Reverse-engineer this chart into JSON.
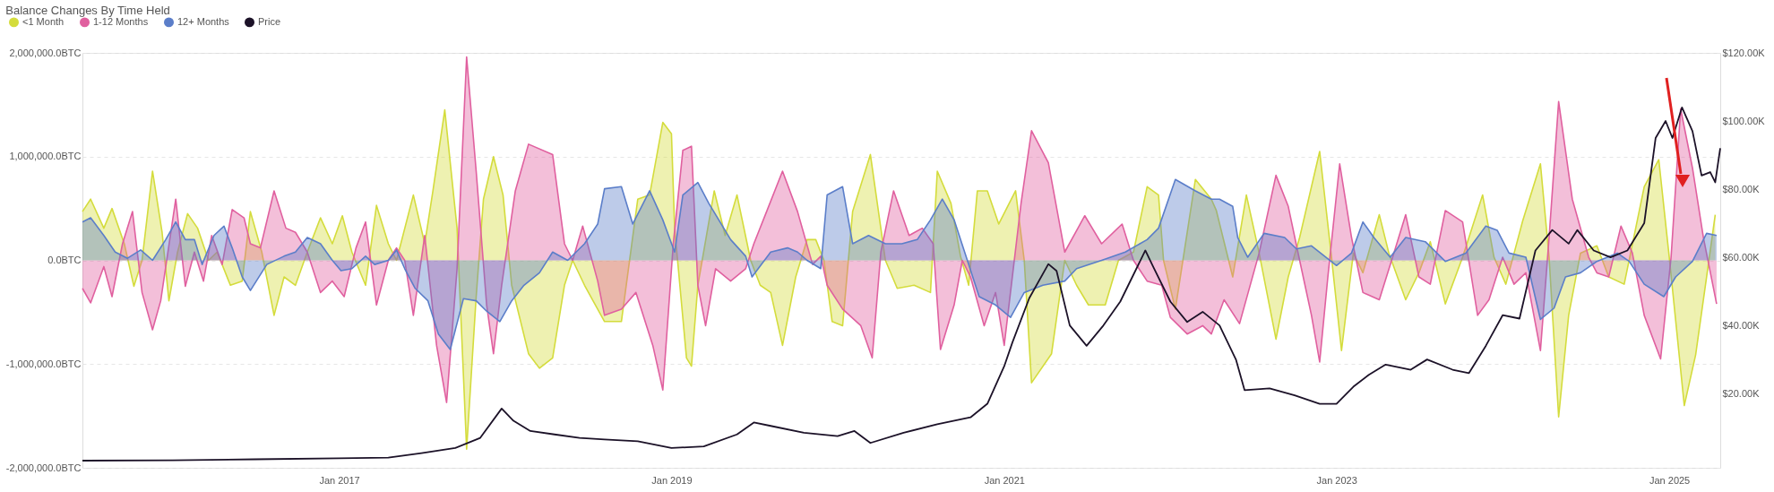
{
  "chart_data": {
    "type": "area",
    "title": "Balance Changes By Time Held",
    "legend": "top left",
    "grid": "y",
    "xlim": [
      "2015-06-17",
      "2025-04-23"
    ],
    "xticks": [
      {
        "value": "2017-01-01",
        "label": "Jan 2017"
      },
      {
        "value": "2019-01-01",
        "label": "Jan 2019"
      },
      {
        "value": "2021-01-01",
        "label": "Jan 2021"
      },
      {
        "value": "2023-01-01",
        "label": "Jan 2023"
      },
      {
        "value": "2025-01-01",
        "label": "Jan 2025"
      }
    ],
    "ylim": [
      -2000000,
      2000000
    ],
    "yticks": [
      {
        "value": -2000000,
        "label": "-2,000,000.0BTC"
      },
      {
        "value": -1000000,
        "label": "-1,000,000.0BTC"
      },
      {
        "value": 0,
        "label": "0.0BTC"
      },
      {
        "value": 1000000,
        "label": "1,000,000.0BTC"
      },
      {
        "value": 2000000,
        "label": "2,000,000.0BTC"
      }
    ],
    "y2lim": [
      -1800,
      120000
    ],
    "y2ticks": [
      {
        "value": 20000,
        "label": "$20.00K"
      },
      {
        "value": 40000,
        "label": "$40.00K"
      },
      {
        "value": 60000,
        "label": "$60.00K"
      },
      {
        "value": 80000,
        "label": "$80.00K"
      },
      {
        "value": 100000,
        "label": "$100.00K"
      },
      {
        "value": 120000,
        "label": "$120.00K"
      }
    ],
    "series": [
      {
        "name": "<1 Month",
        "color": "#d4dc3c",
        "x": [
          "2015-06-17",
          "2015-07-05",
          "2015-08-03",
          "2015-08-21",
          "2015-09-17",
          "2015-10-08",
          "2015-10-26",
          "2015-11-18",
          "2015-12-09",
          "2015-12-24",
          "2016-01-12",
          "2016-02-03",
          "2016-02-25",
          "2016-03-20",
          "2016-04-08",
          "2016-05-07",
          "2016-06-02",
          "2016-06-20",
          "2016-07-15",
          "2016-08-11",
          "2016-09-02",
          "2016-09-27",
          "2016-10-23",
          "2016-11-21",
          "2016-12-17",
          "2017-01-08",
          "2017-01-29",
          "2017-02-28",
          "2017-03-24",
          "2017-04-19",
          "2017-05-07",
          "2017-06-13",
          "2017-07-08",
          "2017-07-26",
          "2017-08-21",
          "2017-09-17",
          "2017-10-08",
          "2017-10-29",
          "2017-11-14",
          "2017-12-06",
          "2017-12-27",
          "2018-01-15",
          "2018-02-21",
          "2018-03-17",
          "2018-04-15",
          "2018-05-11",
          "2018-05-29",
          "2018-06-24",
          "2018-08-07",
          "2018-09-13",
          "2018-10-19",
          "2018-11-14",
          "2018-12-13",
          "2019-01-01",
          "2019-01-08",
          "2019-02-03",
          "2019-02-14",
          "2019-02-28",
          "2019-04-05",
          "2019-04-29",
          "2019-05-25",
          "2019-06-24",
          "2019-07-15",
          "2019-08-07",
          "2019-09-02",
          "2019-10-01",
          "2019-10-26",
          "2019-11-14",
          "2019-12-02",
          "2019-12-20",
          "2020-01-12",
          "2020-02-03",
          "2020-03-13",
          "2020-04-15",
          "2020-05-11",
          "2020-06-17",
          "2020-07-23",
          "2020-08-07",
          "2020-09-06",
          "2020-09-27",
          "2020-10-15",
          "2020-11-03",
          "2020-11-25",
          "2020-12-20",
          "2021-01-26",
          "2021-02-14",
          "2021-03-02",
          "2021-04-15",
          "2021-05-14",
          "2021-06-09",
          "2021-07-05",
          "2021-08-11",
          "2021-09-09",
          "2021-10-12",
          "2021-11-11",
          "2021-12-06",
          "2021-12-17",
          "2022-01-12",
          "2022-02-25",
          "2022-04-01",
          "2022-04-12",
          "2022-05-18",
          "2022-06-17",
          "2022-07-15",
          "2022-08-21",
          "2022-09-17",
          "2022-10-12",
          "2022-11-25",
          "2022-12-20",
          "2023-01-12",
          "2023-02-07",
          "2023-02-28",
          "2023-04-05",
          "2023-04-26",
          "2023-06-02",
          "2023-07-01",
          "2023-07-26",
          "2023-08-28",
          "2023-10-05",
          "2023-11-18",
          "2023-12-13",
          "2024-01-08",
          "2024-02-14",
          "2024-03-24",
          "2024-04-12",
          "2024-05-03",
          "2024-05-25",
          "2024-06-20",
          "2024-07-26",
          "2024-08-21",
          "2024-09-24",
          "2024-11-07",
          "2024-12-09",
          "2025-01-01",
          "2025-02-03",
          "2025-02-28",
          "2025-03-24",
          "2025-04-12"
        ],
        "values": [
          470000,
          590000,
          310000,
          500000,
          160000,
          -250000,
          0,
          860000,
          270000,
          -390000,
          80000,
          450000,
          310000,
          0,
          80000,
          -240000,
          -200000,
          470000,
          80000,
          -530000,
          -160000,
          -240000,
          80000,
          410000,
          160000,
          430000,
          80000,
          -240000,
          530000,
          160000,
          0,
          630000,
          160000,
          670000,
          1450000,
          310000,
          -1820000,
          -350000,
          590000,
          1000000,
          630000,
          -240000,
          -900000,
          -1040000,
          -940000,
          -240000,
          0,
          -240000,
          -590000,
          -590000,
          590000,
          630000,
          1330000,
          1220000,
          310000,
          -940000,
          -1020000,
          -240000,
          670000,
          240000,
          630000,
          0,
          -240000,
          -310000,
          -820000,
          -160000,
          200000,
          200000,
          0,
          -590000,
          -630000,
          470000,
          1020000,
          0,
          -270000,
          -240000,
          -310000,
          860000,
          550000,
          40000,
          -240000,
          670000,
          670000,
          350000,
          670000,
          0,
          -1180000,
          -900000,
          0,
          -240000,
          -430000,
          -430000,
          0,
          80000,
          710000,
          630000,
          0,
          -470000,
          780000,
          590000,
          480000,
          -160000,
          630000,
          70000,
          -760000,
          -160000,
          220000,
          1050000,
          70000,
          -870000,
          70000,
          -120000,
          440000,
          70000,
          -380000,
          -120000,
          180000,
          -420000,
          30000,
          630000,
          30000,
          -230000,
          380000,
          930000,
          30000,
          -1510000,
          -530000,
          70000,
          140000,
          -160000,
          -230000,
          710000,
          970000,
          30000,
          -1400000,
          -910000,
          -160000,
          440000
        ]
      },
      {
        "name": "1-12 Months",
        "color": "#e0609f",
        "x": [
          "2015-06-17",
          "2015-07-05",
          "2015-08-03",
          "2015-08-21",
          "2015-09-13",
          "2015-10-05",
          "2015-10-26",
          "2015-11-18",
          "2015-12-06",
          "2016-01-08",
          "2016-01-29",
          "2016-02-18",
          "2016-03-09",
          "2016-03-27",
          "2016-04-19",
          "2016-05-11",
          "2016-06-06",
          "2016-06-20",
          "2016-07-12",
          "2016-08-11",
          "2016-09-06",
          "2016-09-27",
          "2016-10-23",
          "2016-11-21",
          "2016-12-17",
          "2017-01-12",
          "2017-02-07",
          "2017-02-28",
          "2017-03-24",
          "2017-04-19",
          "2017-05-07",
          "2017-05-25",
          "2017-06-13",
          "2017-07-08",
          "2017-08-03",
          "2017-08-25",
          "2017-09-17",
          "2017-10-08",
          "2017-10-29",
          "2017-11-21",
          "2017-12-06",
          "2017-12-24",
          "2018-01-23",
          "2018-02-21",
          "2018-04-15",
          "2018-05-11",
          "2018-05-29",
          "2018-06-20",
          "2018-07-23",
          "2018-08-07",
          "2018-09-13",
          "2018-10-15",
          "2018-11-21",
          "2018-12-13",
          "2019-01-05",
          "2019-01-26",
          "2019-02-14",
          "2019-02-28",
          "2019-03-17",
          "2019-04-08",
          "2019-05-11",
          "2019-06-13",
          "2019-07-01",
          "2019-07-29",
          "2019-09-02",
          "2019-10-05",
          "2019-11-07",
          "2019-11-25",
          "2019-12-09",
          "2020-01-12",
          "2020-02-21",
          "2020-03-17",
          "2020-04-05",
          "2020-05-03",
          "2020-06-06",
          "2020-07-05",
          "2020-07-29",
          "2020-08-14",
          "2020-09-13",
          "2020-10-01",
          "2020-10-19",
          "2020-11-18",
          "2020-12-13",
          "2021-01-01",
          "2021-02-07",
          "2021-03-02",
          "2021-04-08",
          "2021-05-14",
          "2021-06-27",
          "2021-08-03",
          "2021-09-17",
          "2021-10-12",
          "2021-11-11",
          "2021-12-13",
          "2022-01-01",
          "2022-02-07",
          "2022-03-13",
          "2022-04-01",
          "2022-04-29",
          "2022-06-02",
          "2022-07-15",
          "2022-08-21",
          "2022-09-17",
          "2022-10-12",
          "2022-11-07",
          "2022-11-25",
          "2022-12-13",
          "2023-01-08",
          "2023-02-03",
          "2023-02-28",
          "2023-04-05",
          "2023-05-07",
          "2023-06-02",
          "2023-07-01",
          "2023-07-26",
          "2023-08-28",
          "2023-10-05",
          "2023-11-07",
          "2023-12-02",
          "2024-01-01",
          "2024-01-26",
          "2024-02-21",
          "2024-03-24",
          "2024-04-12",
          "2024-05-03",
          "2024-06-02",
          "2024-07-08",
          "2024-07-26",
          "2024-08-21",
          "2024-09-17",
          "2024-10-12",
          "2024-11-07",
          "2024-12-13",
          "2025-01-05",
          "2025-01-26",
          "2025-02-21",
          "2025-03-17",
          "2025-04-15"
        ],
        "values": [
          -270000,
          -410000,
          -60000,
          -350000,
          160000,
          470000,
          -310000,
          -670000,
          -390000,
          590000,
          -250000,
          80000,
          -200000,
          240000,
          -40000,
          490000,
          410000,
          160000,
          120000,
          670000,
          310000,
          270000,
          80000,
          -310000,
          -200000,
          -350000,
          120000,
          370000,
          -430000,
          0,
          120000,
          0,
          -530000,
          240000,
          -820000,
          -1370000,
          -80000,
          1960000,
          860000,
          -430000,
          -900000,
          -240000,
          670000,
          1120000,
          1020000,
          160000,
          0,
          330000,
          -200000,
          -530000,
          -470000,
          -310000,
          -820000,
          -1250000,
          160000,
          1060000,
          1100000,
          -240000,
          -630000,
          -80000,
          -200000,
          -80000,
          160000,
          470000,
          860000,
          470000,
          -40000,
          40000,
          -240000,
          -470000,
          -630000,
          -940000,
          80000,
          670000,
          240000,
          310000,
          160000,
          -860000,
          -430000,
          0,
          -160000,
          -630000,
          -310000,
          -820000,
          550000,
          1250000,
          940000,
          80000,
          430000,
          160000,
          350000,
          0,
          -200000,
          -240000,
          -550000,
          -710000,
          -630000,
          -710000,
          -380000,
          -610000,
          70000,
          820000,
          520000,
          0,
          -530000,
          -980000,
          -160000,
          930000,
          220000,
          -310000,
          -380000,
          70000,
          440000,
          -160000,
          -230000,
          480000,
          370000,
          -530000,
          -380000,
          30000,
          -230000,
          -120000,
          -870000,
          220000,
          1530000,
          590000,
          30000,
          -120000,
          -160000,
          330000,
          70000,
          -530000,
          -950000,
          30000,
          1460000,
          890000,
          220000,
          -420000
        ]
      },
      {
        "name": "12+ Months",
        "color": "#5b7ec9",
        "x": [
          "2015-06-17",
          "2015-07-05",
          "2015-08-03",
          "2015-08-28",
          "2015-09-24",
          "2015-10-23",
          "2015-11-18",
          "2015-12-17",
          "2016-01-08",
          "2016-01-29",
          "2016-02-18",
          "2016-03-06",
          "2016-04-01",
          "2016-04-23",
          "2016-05-11",
          "2016-06-02",
          "2016-06-20",
          "2016-07-26",
          "2016-09-02",
          "2016-09-27",
          "2016-10-23",
          "2016-11-21",
          "2016-12-17",
          "2017-01-05",
          "2017-01-29",
          "2017-02-28",
          "2017-03-20",
          "2017-04-19",
          "2017-05-07",
          "2017-05-25",
          "2017-06-17",
          "2017-07-15",
          "2017-08-07",
          "2017-09-02",
          "2017-10-01",
          "2017-10-29",
          "2017-11-21",
          "2017-12-20",
          "2018-01-15",
          "2018-02-11",
          "2018-03-17",
          "2018-04-15",
          "2018-05-18",
          "2018-06-24",
          "2018-07-23",
          "2018-08-07",
          "2018-09-13",
          "2018-10-08",
          "2018-11-14",
          "2018-12-13",
          "2019-01-08",
          "2019-01-26",
          "2019-02-28",
          "2019-03-24",
          "2019-05-11",
          "2019-06-13",
          "2019-06-27",
          "2019-08-07",
          "2019-09-13",
          "2019-10-05",
          "2019-10-26",
          "2019-11-25",
          "2019-12-09",
          "2020-01-12",
          "2020-02-03",
          "2020-03-09",
          "2020-04-15",
          "2020-05-21",
          "2020-06-24",
          "2020-07-23",
          "2020-08-18",
          "2020-09-13",
          "2020-10-12",
          "2020-11-07",
          "2020-12-13",
          "2021-01-15",
          "2021-02-14",
          "2021-03-27",
          "2021-05-14",
          "2021-06-09",
          "2021-08-03",
          "2021-09-24",
          "2021-11-11",
          "2021-12-06",
          "2022-01-12",
          "2022-02-25",
          "2022-04-01",
          "2022-04-19",
          "2022-05-18",
          "2022-05-29",
          "2022-06-20",
          "2022-07-26",
          "2022-09-09",
          "2022-10-05",
          "2022-11-07",
          "2023-01-01",
          "2023-02-03",
          "2023-02-28",
          "2023-03-24",
          "2023-04-29",
          "2023-06-02",
          "2023-07-15",
          "2023-08-28",
          "2023-10-12",
          "2023-11-25",
          "2023-12-20",
          "2024-01-15",
          "2024-02-21",
          "2024-03-24",
          "2024-04-23",
          "2024-05-18",
          "2024-06-20",
          "2024-07-26",
          "2024-09-09",
          "2024-10-05",
          "2024-11-07",
          "2024-12-20",
          "2025-01-15",
          "2025-02-21",
          "2025-03-24",
          "2025-04-15"
        ],
        "values": [
          370000,
          410000,
          240000,
          80000,
          20000,
          100000,
          0,
          200000,
          370000,
          200000,
          200000,
          -40000,
          240000,
          330000,
          120000,
          -160000,
          -290000,
          -40000,
          40000,
          80000,
          220000,
          160000,
          0,
          -100000,
          -80000,
          40000,
          -40000,
          0,
          100000,
          -80000,
          -270000,
          -390000,
          -710000,
          -860000,
          -370000,
          -390000,
          -490000,
          -590000,
          -390000,
          -240000,
          -120000,
          80000,
          0,
          160000,
          350000,
          690000,
          710000,
          350000,
          670000,
          390000,
          80000,
          630000,
          750000,
          550000,
          200000,
          40000,
          -160000,
          80000,
          120000,
          80000,
          0,
          -80000,
          630000,
          710000,
          160000,
          240000,
          160000,
          160000,
          200000,
          390000,
          590000,
          390000,
          0,
          -350000,
          -430000,
          -550000,
          -310000,
          -240000,
          -200000,
          -80000,
          0,
          80000,
          200000,
          310000,
          780000,
          670000,
          590000,
          590000,
          520000,
          220000,
          30000,
          260000,
          220000,
          110000,
          140000,
          -50000,
          70000,
          370000,
          220000,
          30000,
          220000,
          180000,
          -10000,
          70000,
          330000,
          290000,
          70000,
          30000,
          -570000,
          -460000,
          -160000,
          -120000,
          -10000,
          70000,
          -10000,
          -230000,
          -350000,
          -160000,
          -10000,
          260000,
          240000
        ]
      },
      {
        "name": "Price",
        "type": "line",
        "axis": "y2",
        "color": "#1c1228",
        "x": [
          "2015-06-17",
          "2016-01-01",
          "2016-07-01",
          "2017-01-01",
          "2017-04-19",
          "2017-07-01",
          "2017-09-13",
          "2017-11-07",
          "2017-12-24",
          "2018-01-19",
          "2018-02-25",
          "2018-04-19",
          "2018-06-13",
          "2018-08-07",
          "2018-10-19",
          "2019-01-01",
          "2019-03-13",
          "2019-05-25",
          "2019-07-01",
          "2019-08-07",
          "2019-10-19",
          "2020-01-01",
          "2020-02-07",
          "2020-03-13",
          "2020-05-25",
          "2020-08-07",
          "2020-10-19",
          "2020-11-25",
          "2021-01-01",
          "2021-01-19",
          "2021-02-25",
          "2021-04-08",
          "2021-04-26",
          "2021-05-25",
          "2021-07-01",
          "2021-08-07",
          "2021-09-13",
          "2021-11-07",
          "2021-11-25",
          "2022-01-01",
          "2022-02-07",
          "2022-03-13",
          "2022-04-19",
          "2022-05-25",
          "2022-06-13",
          "2022-08-07",
          "2022-10-01",
          "2022-11-25",
          "2023-01-01",
          "2023-02-07",
          "2023-03-13",
          "2023-04-19",
          "2023-06-13",
          "2023-07-19",
          "2023-09-13",
          "2023-10-19",
          "2023-11-25",
          "2024-01-01",
          "2024-02-07",
          "2024-03-13",
          "2024-04-19",
          "2024-05-25",
          "2024-06-13",
          "2024-07-19",
          "2024-08-25",
          "2024-10-01",
          "2024-11-07",
          "2024-12-02",
          "2024-12-24",
          "2025-01-08",
          "2025-01-29",
          "2025-02-21",
          "2025-03-13",
          "2025-04-01",
          "2025-04-12",
          "2025-04-23"
        ],
        "values": [
          300,
          400,
          700,
          1000,
          1200,
          2500,
          4000,
          7000,
          15600,
          12000,
          9000,
          8000,
          7000,
          6500,
          6000,
          4000,
          4500,
          8000,
          11500,
          10500,
          8500,
          7500,
          9000,
          5500,
          8500,
          11000,
          13000,
          17000,
          28000,
          35000,
          48000,
          58000,
          56000,
          40000,
          34000,
          40000,
          47000,
          62000,
          57000,
          47000,
          41000,
          44000,
          40000,
          30000,
          21000,
          21500,
          19500,
          17000,
          17000,
          22000,
          25500,
          28500,
          27000,
          30000,
          27000,
          26000,
          34000,
          43000,
          42000,
          62000,
          68000,
          64000,
          68000,
          62000,
          60000,
          62000,
          70000,
          95000,
          100000,
          95000,
          104000,
          97000,
          84000,
          85000,
          82000,
          92000
        ]
      }
    ]
  }
}
